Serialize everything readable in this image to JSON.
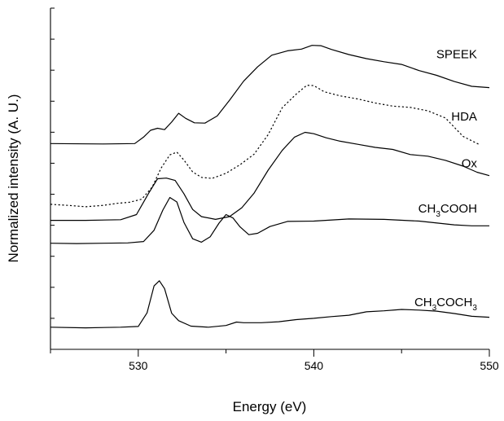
{
  "chart_data": {
    "type": "line",
    "title": "",
    "xlabel": "Energy (eV)",
    "ylabel": "Normalized intensity (A. U.)",
    "xlim": [
      525,
      550
    ],
    "ylim": [
      0,
      1
    ],
    "xticks": [
      530,
      540,
      550
    ],
    "grid": false,
    "legend": "none",
    "series": [
      {
        "name": "SPEEK",
        "label_prefix": "SPEEK",
        "label_sub": "",
        "label_suffix": "",
        "label_sub2": "",
        "style": "solid",
        "label_at": [
          549.3,
          0.853
        ],
        "points": [
          [
            525,
            0.603
          ],
          [
            528,
            0.602
          ],
          [
            529.8,
            0.603
          ],
          [
            530.3,
            0.622
          ],
          [
            530.7,
            0.642
          ],
          [
            531.1,
            0.648
          ],
          [
            531.5,
            0.644
          ],
          [
            531.9,
            0.666
          ],
          [
            532.3,
            0.692
          ],
          [
            532.7,
            0.677
          ],
          [
            533.2,
            0.664
          ],
          [
            533.8,
            0.663
          ],
          [
            534.5,
            0.684
          ],
          [
            535.2,
            0.73
          ],
          [
            536,
            0.786
          ],
          [
            536.8,
            0.828
          ],
          [
            537.6,
            0.862
          ],
          [
            538.5,
            0.875
          ],
          [
            539.3,
            0.88
          ],
          [
            539.9,
            0.891
          ],
          [
            540.4,
            0.89
          ],
          [
            541,
            0.879
          ],
          [
            542,
            0.864
          ],
          [
            543,
            0.852
          ],
          [
            544,
            0.843
          ],
          [
            545,
            0.835
          ],
          [
            546,
            0.817
          ],
          [
            547,
            0.803
          ],
          [
            548,
            0.785
          ],
          [
            549,
            0.771
          ],
          [
            550,
            0.767
          ]
        ]
      },
      {
        "name": "HDA",
        "label_prefix": "HDA",
        "label_sub": "",
        "label_suffix": "",
        "label_sub2": "",
        "style": "dotted",
        "label_at": [
          549.3,
          0.671
        ],
        "points": [
          [
            525,
            0.425
          ],
          [
            526,
            0.422
          ],
          [
            527,
            0.418
          ],
          [
            528,
            0.422
          ],
          [
            528.8,
            0.428
          ],
          [
            529.5,
            0.431
          ],
          [
            530.2,
            0.44
          ],
          [
            530.8,
            0.476
          ],
          [
            531.3,
            0.531
          ],
          [
            531.8,
            0.57
          ],
          [
            532.2,
            0.578
          ],
          [
            532.6,
            0.555
          ],
          [
            533.1,
            0.52
          ],
          [
            533.6,
            0.504
          ],
          [
            534.2,
            0.501
          ],
          [
            535,
            0.516
          ],
          [
            535.8,
            0.541
          ],
          [
            536.6,
            0.572
          ],
          [
            537.4,
            0.629
          ],
          [
            538.2,
            0.708
          ],
          [
            539,
            0.748
          ],
          [
            539.6,
            0.774
          ],
          [
            540,
            0.773
          ],
          [
            540.6,
            0.755
          ],
          [
            541.5,
            0.743
          ],
          [
            542.5,
            0.734
          ],
          [
            543.5,
            0.722
          ],
          [
            544.5,
            0.713
          ],
          [
            545.5,
            0.709
          ],
          [
            546.5,
            0.699
          ],
          [
            547.5,
            0.678
          ],
          [
            548.5,
            0.624
          ],
          [
            549.4,
            0.601
          ]
        ]
      },
      {
        "name": "Ox",
        "label_prefix": "Ox",
        "label_sub": "",
        "label_suffix": "",
        "label_sub2": "",
        "style": "solid",
        "label_at": [
          549.3,
          0.533
        ],
        "points": [
          [
            525,
            0.378
          ],
          [
            527,
            0.378
          ],
          [
            529,
            0.38
          ],
          [
            529.9,
            0.395
          ],
          [
            530.6,
            0.458
          ],
          [
            531.1,
            0.5
          ],
          [
            531.6,
            0.502
          ],
          [
            532.1,
            0.495
          ],
          [
            532.6,
            0.456
          ],
          [
            533.1,
            0.41
          ],
          [
            533.6,
            0.389
          ],
          [
            534.4,
            0.381
          ],
          [
            535.2,
            0.389
          ],
          [
            535.9,
            0.415
          ],
          [
            536.6,
            0.458
          ],
          [
            537.4,
            0.525
          ],
          [
            538.2,
            0.583
          ],
          [
            538.9,
            0.622
          ],
          [
            539.5,
            0.636
          ],
          [
            540,
            0.632
          ],
          [
            540.7,
            0.62
          ],
          [
            541.5,
            0.61
          ],
          [
            542.5,
            0.601
          ],
          [
            543.5,
            0.592
          ],
          [
            544.5,
            0.586
          ],
          [
            545.5,
            0.571
          ],
          [
            546.5,
            0.566
          ],
          [
            547.5,
            0.554
          ],
          [
            548.5,
            0.537
          ],
          [
            549.3,
            0.519
          ],
          [
            550,
            0.509
          ]
        ]
      },
      {
        "name": "CH3COOH",
        "label_prefix": "CH",
        "label_sub": "3",
        "label_suffix": "COOH",
        "label_sub2": "",
        "style": "solid",
        "label_at": [
          549.3,
          0.401
        ],
        "points": [
          [
            525,
            0.311
          ],
          [
            526.5,
            0.31
          ],
          [
            528,
            0.311
          ],
          [
            529.4,
            0.312
          ],
          [
            530.3,
            0.316
          ],
          [
            530.9,
            0.349
          ],
          [
            531.4,
            0.408
          ],
          [
            531.8,
            0.445
          ],
          [
            532.2,
            0.432
          ],
          [
            532.6,
            0.372
          ],
          [
            533.1,
            0.324
          ],
          [
            533.6,
            0.314
          ],
          [
            534.1,
            0.33
          ],
          [
            534.6,
            0.37
          ],
          [
            535,
            0.395
          ],
          [
            535.4,
            0.385
          ],
          [
            535.8,
            0.359
          ],
          [
            536.3,
            0.336
          ],
          [
            536.8,
            0.34
          ],
          [
            537.5,
            0.36
          ],
          [
            538.5,
            0.375
          ],
          [
            540,
            0.376
          ],
          [
            542,
            0.382
          ],
          [
            544,
            0.381
          ],
          [
            546,
            0.376
          ],
          [
            548,
            0.365
          ],
          [
            549,
            0.362
          ],
          [
            550,
            0.362
          ]
        ]
      },
      {
        "name": "CH3COCH3",
        "label_prefix": "CH",
        "label_sub": "3",
        "label_suffix": "COCH",
        "label_sub2": "3",
        "style": "solid",
        "label_at": [
          549.3,
          0.126
        ],
        "points": [
          [
            525,
            0.065
          ],
          [
            527,
            0.063
          ],
          [
            529,
            0.065
          ],
          [
            530,
            0.067
          ],
          [
            530.5,
            0.107
          ],
          [
            530.9,
            0.186
          ],
          [
            531.2,
            0.201
          ],
          [
            531.5,
            0.178
          ],
          [
            531.9,
            0.106
          ],
          [
            532.3,
            0.084
          ],
          [
            533,
            0.068
          ],
          [
            534,
            0.065
          ],
          [
            535,
            0.07
          ],
          [
            535.6,
            0.08
          ],
          [
            536,
            0.078
          ],
          [
            537,
            0.078
          ],
          [
            538,
            0.081
          ],
          [
            539,
            0.087
          ],
          [
            540,
            0.091
          ],
          [
            541,
            0.096
          ],
          [
            542,
            0.1
          ],
          [
            543,
            0.11
          ],
          [
            544,
            0.113
          ],
          [
            545,
            0.117
          ],
          [
            546,
            0.115
          ],
          [
            547,
            0.112
          ],
          [
            548,
            0.105
          ],
          [
            549,
            0.097
          ],
          [
            550,
            0.094
          ]
        ]
      }
    ]
  }
}
